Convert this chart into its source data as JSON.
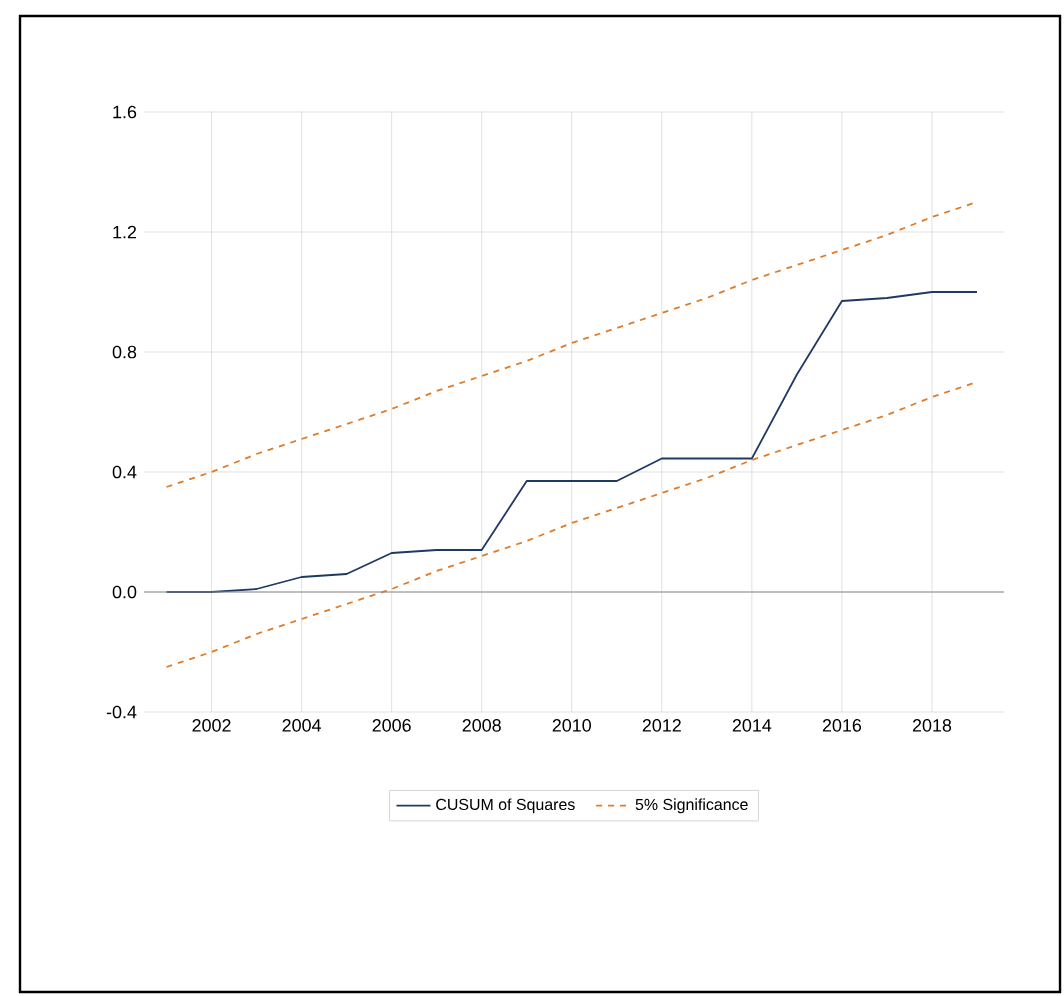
{
  "chart_data": {
    "type": "line",
    "x": [
      2001,
      2002,
      2003,
      2004,
      2005,
      2006,
      2007,
      2008,
      2009,
      2010,
      2011,
      2012,
      2013,
      2014,
      2015,
      2016,
      2017,
      2018,
      2019
    ],
    "series": [
      {
        "name": "CUSUM of Squares",
        "color": "#1f3864",
        "line_style": "solid",
        "values": [
          0.0,
          0.0,
          0.01,
          0.05,
          0.06,
          0.13,
          0.14,
          0.14,
          0.37,
          0.37,
          0.37,
          0.445,
          0.445,
          0.445,
          0.725,
          0.97,
          0.98,
          1.0,
          1.0
        ]
      },
      {
        "name": "5% Significance",
        "color": "#e07b28",
        "line_style": "dashed",
        "values": [
          0.35,
          0.4,
          0.46,
          0.51,
          0.56,
          0.61,
          0.67,
          0.72,
          0.77,
          0.83,
          0.88,
          0.93,
          0.98,
          1.04,
          1.09,
          1.14,
          1.19,
          1.25,
          1.3
        ]
      },
      {
        "color": "#e07b28",
        "line_style": "dashed",
        "values": [
          -0.25,
          -0.2,
          -0.14,
          -0.09,
          -0.04,
          0.01,
          0.07,
          0.12,
          0.17,
          0.23,
          0.28,
          0.33,
          0.38,
          0.44,
          0.49,
          0.54,
          0.59,
          0.65,
          0.7
        ]
      }
    ],
    "xlim": [
      2000.5,
      2019.6
    ],
    "ylim": [
      -0.4,
      1.6
    ],
    "xticks": [
      2002,
      2004,
      2006,
      2008,
      2010,
      2012,
      2014,
      2016,
      2018
    ],
    "yticks": [
      {
        "value": -0.4,
        "label": "-0.4"
      },
      {
        "value": 0,
        "label": "0.0"
      },
      {
        "value": 0.4,
        "label": "0.4"
      },
      {
        "value": 0.8,
        "label": "0.8"
      },
      {
        "value": 1.2,
        "label": "1.2"
      },
      {
        "value": 1.6,
        "label": "1.6"
      }
    ],
    "grid": true,
    "legend": "bottom",
    "marker": "none"
  }
}
